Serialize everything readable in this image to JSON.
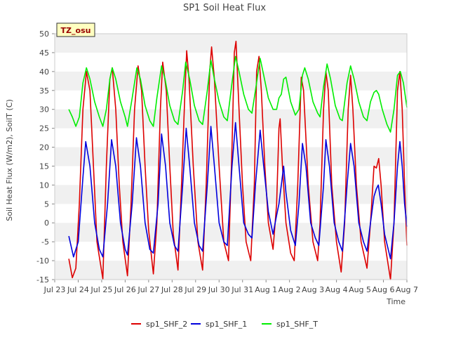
{
  "chart_data": {
    "type": "line",
    "title": "SP1 Soil Heat Flux",
    "xlabel": "Time",
    "ylabel": "Soil Heat Flux (W/m2), SoilT (C)",
    "badge": "TZ_osu",
    "xlim": [
      0,
      15
    ],
    "ylim": [
      -15,
      50
    ],
    "x_ticks": [
      {
        "x": 0,
        "label": "Jul 23"
      },
      {
        "x": 1,
        "label": "Jul 24"
      },
      {
        "x": 2,
        "label": "Jul 25"
      },
      {
        "x": 3,
        "label": "Jul 26"
      },
      {
        "x": 4,
        "label": "Jul 27"
      },
      {
        "x": 5,
        "label": "Jul 28"
      },
      {
        "x": 6,
        "label": "Jul 29"
      },
      {
        "x": 7,
        "label": "Jul 30"
      },
      {
        "x": 8,
        "label": "Jul 31"
      },
      {
        "x": 9,
        "label": "Aug 1"
      },
      {
        "x": 10,
        "label": "Aug 2"
      },
      {
        "x": 11,
        "label": "Aug 3"
      },
      {
        "x": 12,
        "label": "Aug 4"
      },
      {
        "x": 13,
        "label": "Aug 5"
      },
      {
        "x": 14,
        "label": "Aug 6"
      },
      {
        "x": 15,
        "label": "Aug 7"
      }
    ],
    "y_ticks": [
      -15,
      -10,
      -5,
      0,
      5,
      10,
      15,
      20,
      25,
      30,
      35,
      40,
      45,
      50
    ],
    "grid": "horizontal bands",
    "legend_position": "bottom",
    "series": [
      {
        "name": "sp1_SHF_2",
        "color": "#dd0000",
        "points": [
          [
            0.6,
            -9.5
          ],
          [
            0.75,
            -14.5
          ],
          [
            0.9,
            -12
          ],
          [
            1.05,
            5
          ],
          [
            1.2,
            30
          ],
          [
            1.35,
            40
          ],
          [
            1.5,
            35
          ],
          [
            1.65,
            15
          ],
          [
            1.8,
            -5
          ],
          [
            2.05,
            -14.8
          ],
          [
            2.2,
            15
          ],
          [
            2.35,
            38
          ],
          [
            2.45,
            41
          ],
          [
            2.6,
            30
          ],
          [
            2.75,
            10
          ],
          [
            2.9,
            -5
          ],
          [
            3.1,
            -14
          ],
          [
            3.25,
            5
          ],
          [
            3.4,
            30
          ],
          [
            3.55,
            41.5
          ],
          [
            3.7,
            35
          ],
          [
            3.85,
            15
          ],
          [
            4.0,
            -2
          ],
          [
            4.2,
            -13.5
          ],
          [
            4.35,
            0
          ],
          [
            4.5,
            30
          ],
          [
            4.6,
            42.5
          ],
          [
            4.75,
            35
          ],
          [
            4.9,
            15
          ],
          [
            5.05,
            -3
          ],
          [
            5.25,
            -12.5
          ],
          [
            5.4,
            10
          ],
          [
            5.55,
            35
          ],
          [
            5.62,
            45.5
          ],
          [
            5.72,
            38
          ],
          [
            5.9,
            15
          ],
          [
            6.1,
            -5
          ],
          [
            6.3,
            -12.5
          ],
          [
            6.45,
            10
          ],
          [
            6.6,
            40
          ],
          [
            6.68,
            46.5
          ],
          [
            6.8,
            38
          ],
          [
            7.0,
            15
          ],
          [
            7.2,
            -5
          ],
          [
            7.4,
            -10
          ],
          [
            7.55,
            20
          ],
          [
            7.65,
            45
          ],
          [
            7.72,
            48
          ],
          [
            7.85,
            30
          ],
          [
            8.0,
            10
          ],
          [
            8.15,
            -5
          ],
          [
            8.35,
            -10
          ],
          [
            8.5,
            10
          ],
          [
            8.6,
            40
          ],
          [
            8.7,
            44
          ],
          [
            8.8,
            35
          ],
          [
            8.95,
            15
          ],
          [
            9.1,
            0
          ],
          [
            9.3,
            -7
          ],
          [
            9.45,
            5
          ],
          [
            9.55,
            25
          ],
          [
            9.6,
            27.5
          ],
          [
            9.7,
            15
          ],
          [
            9.85,
            0
          ],
          [
            10.05,
            -8
          ],
          [
            10.2,
            -10
          ],
          [
            10.35,
            10
          ],
          [
            10.5,
            38.5
          ],
          [
            10.6,
            35
          ],
          [
            10.8,
            10
          ],
          [
            11.0,
            -5
          ],
          [
            11.2,
            -10
          ],
          [
            11.3,
            0
          ],
          [
            11.45,
            30
          ],
          [
            11.55,
            40
          ],
          [
            11.65,
            35
          ],
          [
            11.8,
            10
          ],
          [
            12.0,
            -5
          ],
          [
            12.2,
            -13
          ],
          [
            12.35,
            0
          ],
          [
            12.5,
            30
          ],
          [
            12.6,
            39
          ],
          [
            12.7,
            30
          ],
          [
            12.85,
            10
          ],
          [
            13.05,
            -5
          ],
          [
            13.3,
            -12
          ],
          [
            13.45,
            0
          ],
          [
            13.6,
            15
          ],
          [
            13.7,
            14.5
          ],
          [
            13.8,
            17
          ],
          [
            13.9,
            10
          ],
          [
            14.05,
            -5
          ],
          [
            14.3,
            -15
          ],
          [
            14.45,
            0
          ],
          [
            14.6,
            35
          ],
          [
            14.7,
            40
          ],
          [
            14.8,
            30
          ],
          [
            14.9,
            10
          ],
          [
            15.0,
            -6
          ]
        ]
      },
      {
        "name": "sp1_SHF_1",
        "color": "#0000dd",
        "points": [
          [
            0.6,
            -3.5
          ],
          [
            0.8,
            -9
          ],
          [
            1.0,
            -5
          ],
          [
            1.2,
            12
          ],
          [
            1.32,
            21.5
          ],
          [
            1.5,
            15
          ],
          [
            1.7,
            0
          ],
          [
            1.9,
            -7
          ],
          [
            2.05,
            -9
          ],
          [
            2.25,
            5
          ],
          [
            2.42,
            22
          ],
          [
            2.6,
            15
          ],
          [
            2.8,
            0
          ],
          [
            3.0,
            -7
          ],
          [
            3.1,
            -8.5
          ],
          [
            3.3,
            5
          ],
          [
            3.48,
            22.5
          ],
          [
            3.65,
            15
          ],
          [
            3.85,
            0
          ],
          [
            4.05,
            -7
          ],
          [
            4.2,
            -8
          ],
          [
            4.4,
            5
          ],
          [
            4.55,
            23.5
          ],
          [
            4.72,
            15
          ],
          [
            4.9,
            0
          ],
          [
            5.1,
            -6
          ],
          [
            5.25,
            -7.5
          ],
          [
            5.45,
            10
          ],
          [
            5.6,
            25
          ],
          [
            5.75,
            15
          ],
          [
            5.95,
            0
          ],
          [
            6.15,
            -6
          ],
          [
            6.3,
            -7.5
          ],
          [
            6.5,
            10
          ],
          [
            6.65,
            25.5
          ],
          [
            6.8,
            15
          ],
          [
            7.0,
            0
          ],
          [
            7.2,
            -5
          ],
          [
            7.35,
            -6
          ],
          [
            7.55,
            15
          ],
          [
            7.7,
            26.5
          ],
          [
            7.85,
            15
          ],
          [
            8.05,
            0
          ],
          [
            8.25,
            -3
          ],
          [
            8.4,
            -4
          ],
          [
            8.55,
            10
          ],
          [
            8.75,
            24.5
          ],
          [
            8.9,
            15
          ],
          [
            9.1,
            3
          ],
          [
            9.3,
            -3
          ],
          [
            9.45,
            2
          ],
          [
            9.55,
            5
          ],
          [
            9.65,
            10
          ],
          [
            9.75,
            15
          ],
          [
            9.85,
            8
          ],
          [
            10.05,
            -2
          ],
          [
            10.25,
            -6
          ],
          [
            10.4,
            5
          ],
          [
            10.55,
            21
          ],
          [
            10.7,
            15
          ],
          [
            10.9,
            0
          ],
          [
            11.1,
            -4
          ],
          [
            11.25,
            -6
          ],
          [
            11.45,
            10
          ],
          [
            11.55,
            22
          ],
          [
            11.7,
            15
          ],
          [
            11.9,
            0
          ],
          [
            12.1,
            -5
          ],
          [
            12.25,
            -7.5
          ],
          [
            12.45,
            10
          ],
          [
            12.6,
            21
          ],
          [
            12.75,
            15
          ],
          [
            12.95,
            0
          ],
          [
            13.15,
            -5
          ],
          [
            13.3,
            -7.5
          ],
          [
            13.45,
            0
          ],
          [
            13.6,
            7
          ],
          [
            13.7,
            9
          ],
          [
            13.78,
            10
          ],
          [
            13.9,
            5
          ],
          [
            14.05,
            -3
          ],
          [
            14.3,
            -9.5
          ],
          [
            14.45,
            0
          ],
          [
            14.6,
            15
          ],
          [
            14.7,
            21.5
          ],
          [
            14.8,
            15
          ],
          [
            14.9,
            5
          ],
          [
            15.0,
            -1
          ]
        ]
      },
      {
        "name": "sp1_SHF_T",
        "color": "#00ee00",
        "points": [
          [
            0.6,
            30
          ],
          [
            0.75,
            28
          ],
          [
            0.9,
            25.5
          ],
          [
            1.05,
            28
          ],
          [
            1.2,
            37
          ],
          [
            1.35,
            41
          ],
          [
            1.5,
            38
          ],
          [
            1.7,
            32
          ],
          [
            1.9,
            28
          ],
          [
            2.05,
            25.5
          ],
          [
            2.2,
            30
          ],
          [
            2.35,
            38
          ],
          [
            2.45,
            41
          ],
          [
            2.6,
            38
          ],
          [
            2.8,
            32
          ],
          [
            3.0,
            28
          ],
          [
            3.1,
            25.5
          ],
          [
            3.3,
            33
          ],
          [
            3.5,
            41
          ],
          [
            3.65,
            38
          ],
          [
            3.85,
            31
          ],
          [
            4.05,
            27
          ],
          [
            4.2,
            25.5
          ],
          [
            4.35,
            33
          ],
          [
            4.55,
            41.5
          ],
          [
            4.7,
            38
          ],
          [
            4.9,
            31
          ],
          [
            5.1,
            27
          ],
          [
            5.25,
            26
          ],
          [
            5.45,
            35
          ],
          [
            5.58,
            42.5
          ],
          [
            5.75,
            38
          ],
          [
            5.95,
            31
          ],
          [
            6.15,
            27
          ],
          [
            6.3,
            26
          ],
          [
            6.5,
            35
          ],
          [
            6.65,
            43
          ],
          [
            6.8,
            38
          ],
          [
            7.0,
            32
          ],
          [
            7.2,
            28
          ],
          [
            7.35,
            27
          ],
          [
            7.55,
            37
          ],
          [
            7.7,
            44
          ],
          [
            7.85,
            40
          ],
          [
            8.05,
            34
          ],
          [
            8.25,
            30
          ],
          [
            8.4,
            29
          ],
          [
            8.55,
            35
          ],
          [
            8.75,
            43.5
          ],
          [
            8.9,
            39
          ],
          [
            9.1,
            33
          ],
          [
            9.3,
            30
          ],
          [
            9.45,
            30
          ],
          [
            9.55,
            33
          ],
          [
            9.65,
            34
          ],
          [
            9.75,
            38
          ],
          [
            9.85,
            38.5
          ],
          [
            10.05,
            32
          ],
          [
            10.25,
            28.5
          ],
          [
            10.4,
            30
          ],
          [
            10.55,
            39
          ],
          [
            10.65,
            41
          ],
          [
            10.8,
            38
          ],
          [
            11.0,
            32
          ],
          [
            11.2,
            29
          ],
          [
            11.3,
            28
          ],
          [
            11.45,
            36
          ],
          [
            11.6,
            42
          ],
          [
            11.75,
            38
          ],
          [
            11.95,
            31
          ],
          [
            12.15,
            27.5
          ],
          [
            12.25,
            27
          ],
          [
            12.45,
            37
          ],
          [
            12.6,
            41.5
          ],
          [
            12.75,
            38
          ],
          [
            12.95,
            32
          ],
          [
            13.15,
            28
          ],
          [
            13.3,
            27
          ],
          [
            13.45,
            32
          ],
          [
            13.6,
            34.5
          ],
          [
            13.7,
            35
          ],
          [
            13.8,
            34
          ],
          [
            13.95,
            30
          ],
          [
            14.15,
            26
          ],
          [
            14.3,
            24
          ],
          [
            14.45,
            30
          ],
          [
            14.6,
            39
          ],
          [
            14.72,
            40
          ],
          [
            14.85,
            37
          ],
          [
            15.0,
            30.5
          ]
        ]
      }
    ]
  }
}
